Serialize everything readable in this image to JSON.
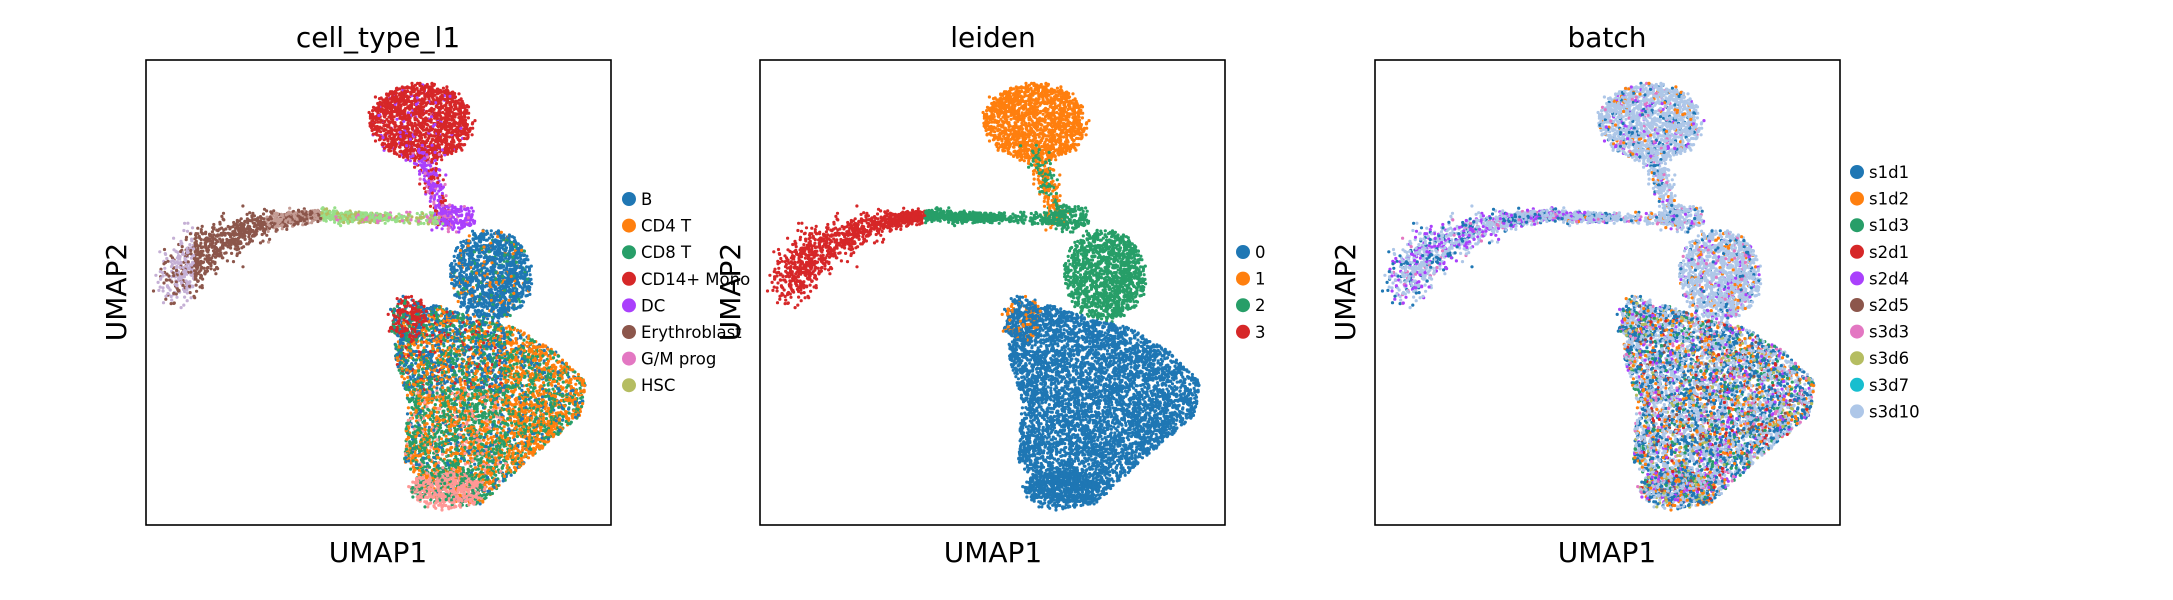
{
  "chart_data": [
    {
      "type": "scatter",
      "title": "cell_type_l1",
      "xlabel": "UMAP1",
      "ylabel": "UMAP2",
      "ticks": false,
      "legend_placement": "right",
      "legend": [
        {
          "label": "B",
          "color": "#1f77b4"
        },
        {
          "label": "CD4 T",
          "color": "#ff7f0e"
        },
        {
          "label": "CD8 T",
          "color": "#279e68"
        },
        {
          "label": "CD14+ Mono",
          "color": "#d62728"
        },
        {
          "label": "DC",
          "color": "#aa40fc"
        },
        {
          "label": "Erythroblast",
          "color": "#8c564b"
        },
        {
          "label": "G/M prog",
          "color": "#e377c2"
        },
        {
          "label": "HSC",
          "color": "#b5bd61"
        }
      ]
    },
    {
      "type": "scatter",
      "title": "leiden",
      "xlabel": "UMAP1",
      "ylabel": "UMAP2",
      "ticks": false,
      "legend_placement": "right",
      "legend": [
        {
          "label": "0",
          "color": "#1f77b4"
        },
        {
          "label": "1",
          "color": "#ff7f0e"
        },
        {
          "label": "2",
          "color": "#279e68"
        },
        {
          "label": "3",
          "color": "#d62728"
        }
      ]
    },
    {
      "type": "scatter",
      "title": "batch",
      "xlabel": "UMAP1",
      "ylabel": "UMAP2",
      "ticks": false,
      "legend_placement": "right",
      "legend": [
        {
          "label": "s1d1",
          "color": "#1f77b4"
        },
        {
          "label": "s1d2",
          "color": "#ff7f0e"
        },
        {
          "label": "s1d3",
          "color": "#279e68"
        },
        {
          "label": "s2d1",
          "color": "#d62728"
        },
        {
          "label": "s2d4",
          "color": "#aa40fc"
        },
        {
          "label": "s2d5",
          "color": "#8c564b"
        },
        {
          "label": "s3d3",
          "color": "#e377c2"
        },
        {
          "label": "s3d6",
          "color": "#b5bd61"
        },
        {
          "label": "s3d7",
          "color": "#17becf"
        },
        {
          "label": "s3d10",
          "color": "#aec7e8"
        }
      ]
    }
  ]
}
